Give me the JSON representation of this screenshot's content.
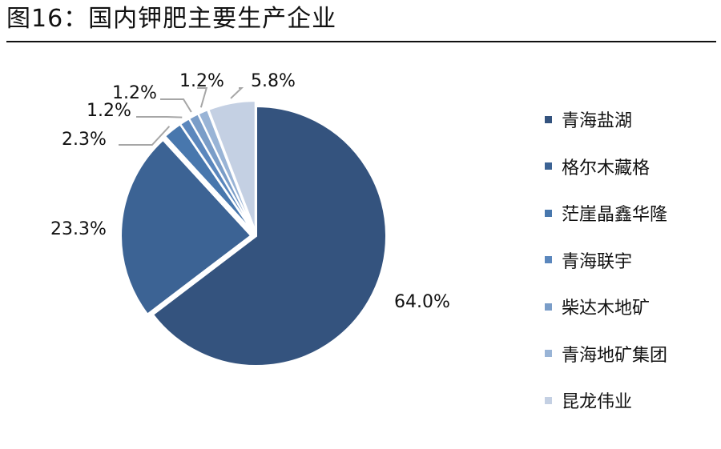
{
  "page": {
    "title": "图16：国内钾肥主要生产企业"
  },
  "chart_data": {
    "type": "pie",
    "title": "图16：国内钾肥主要生产企业",
    "slices": [
      {
        "label": "青海盐湖",
        "value": 64.0,
        "display": "64.0%",
        "color": "#34537e"
      },
      {
        "label": "格尔木藏格",
        "value": 23.3,
        "display": "23.3%",
        "color": "#3c6394"
      },
      {
        "label": "茫崖晶鑫华隆",
        "value": 2.3,
        "display": "2.3%",
        "color": "#4877ad"
      },
      {
        "label": "青海联宇",
        "value": 1.2,
        "display": "1.2%",
        "color": "#5b87bd"
      },
      {
        "label": "柴达木地矿",
        "value": 1.2,
        "display": "1.2%",
        "color": "#7a9dc8"
      },
      {
        "label": "青海地矿集团",
        "value": 1.2,
        "display": "1.2%",
        "color": "#99b4d6"
      },
      {
        "label": "昆龙伟业",
        "value": 5.8,
        "display": "5.8%",
        "color": "#c4d0e3"
      }
    ],
    "legend_position": "right"
  }
}
